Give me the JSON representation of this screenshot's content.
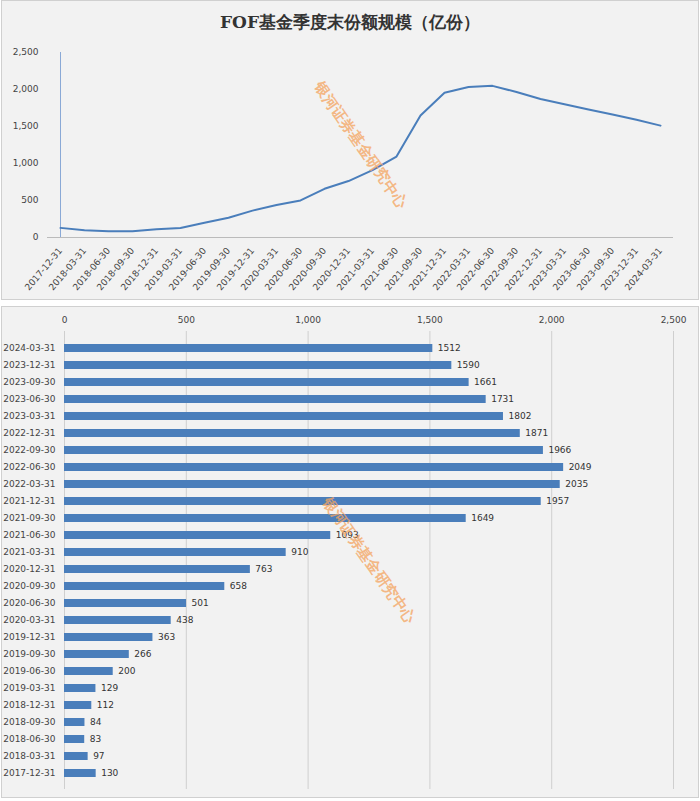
{
  "chart_data": [
    {
      "type": "line",
      "title": "FOF基金季度末份额规模（亿份）",
      "annotation": "银河证券基金研究中心",
      "categories": [
        "2017-12-31",
        "2018-03-31",
        "2018-06-30",
        "2018-09-30",
        "2018-12-31",
        "2019-03-31",
        "2019-06-30",
        "2019-09-30",
        "2019-12-31",
        "2020-03-31",
        "2020-06-30",
        "2020-09-30",
        "2020-12-31",
        "2021-03-31",
        "2021-06-30",
        "2021-09-30",
        "2021-12-31",
        "2022-03-31",
        "2022-06-30",
        "2022-09-30",
        "2022-12-31",
        "2023-03-31",
        "2023-06-30",
        "2023-09-30",
        "2023-12-31",
        "2024-03-31"
      ],
      "values": [
        130,
        97,
        83,
        84,
        112,
        129,
        200,
        266,
        363,
        438,
        501,
        658,
        763,
        910,
        1093,
        1649,
        1957,
        2035,
        2049,
        1966,
        1871,
        1802,
        1731,
        1661,
        1590,
        1512
      ],
      "color": "#4a7ebb",
      "ylim": [
        0,
        2500
      ],
      "yticks": [
        0,
        500,
        1000,
        1500,
        2000,
        2500
      ],
      "grid": false
    },
    {
      "type": "bar",
      "orientation": "horizontal",
      "annotation": "银河证券基金研究中心",
      "categories": [
        "2017-12-31",
        "2018-03-31",
        "2018-06-30",
        "2018-09-30",
        "2018-12-31",
        "2019-03-31",
        "2019-06-30",
        "2019-09-30",
        "2019-12-31",
        "2020-03-31",
        "2020-06-30",
        "2020-09-30",
        "2020-12-31",
        "2021-03-31",
        "2021-06-30",
        "2021-09-30",
        "2021-12-31",
        "2022-03-31",
        "2022-06-30",
        "2022-09-30",
        "2022-12-31",
        "2023-03-31",
        "2023-06-30",
        "2023-09-30",
        "2023-12-31",
        "2024-03-31"
      ],
      "values": [
        130,
        97,
        83,
        84,
        112,
        129,
        200,
        266,
        363,
        438,
        501,
        658,
        763,
        910,
        1093,
        1649,
        1957,
        2035,
        2049,
        1966,
        1871,
        1802,
        1731,
        1661,
        1590,
        1512
      ],
      "color": "#4a7ebb",
      "xlim": [
        0,
        2500
      ],
      "xticks": [
        0,
        500,
        1000,
        1500,
        2000,
        2500
      ],
      "grid": true,
      "data_labels": true
    }
  ]
}
